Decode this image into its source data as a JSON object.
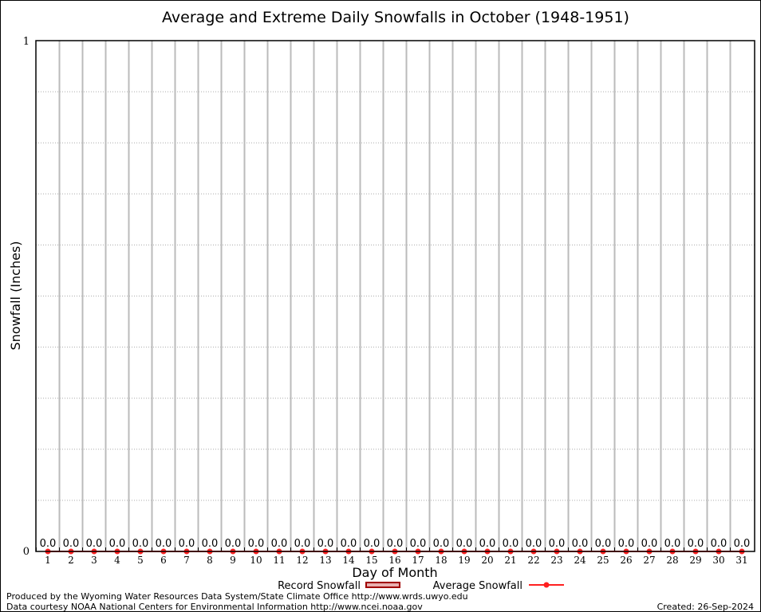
{
  "chart_data": {
    "type": "bar",
    "title": "Average and Extreme Daily Snowfalls in October (1948-1951)",
    "xlabel": "Day of Month",
    "ylabel": "Snowfall (Inches)",
    "categories": [
      1,
      2,
      3,
      4,
      5,
      6,
      7,
      8,
      9,
      10,
      11,
      12,
      13,
      14,
      15,
      16,
      17,
      18,
      19,
      20,
      21,
      22,
      23,
      24,
      25,
      26,
      27,
      28,
      29,
      30,
      31
    ],
    "ylim": [
      0,
      1
    ],
    "yticks": [
      "0",
      "1"
    ],
    "grid": true,
    "legend_position": "bottom",
    "series": [
      {
        "name": "Record Snowfall",
        "type": "bar",
        "color": "#a00000",
        "values": [
          0,
          0,
          0,
          0,
          0,
          0,
          0,
          0,
          0,
          0,
          0,
          0,
          0,
          0,
          0,
          0,
          0,
          0,
          0,
          0,
          0,
          0,
          0,
          0,
          0,
          0,
          0,
          0,
          0,
          0,
          0
        ]
      },
      {
        "name": "Average Snowfall",
        "type": "line",
        "color": "#ff2020",
        "values": [
          0,
          0,
          0,
          0,
          0,
          0,
          0,
          0,
          0,
          0,
          0,
          0,
          0,
          0,
          0,
          0,
          0,
          0,
          0,
          0,
          0,
          0,
          0,
          0,
          0,
          0,
          0,
          0,
          0,
          0,
          0
        ]
      }
    ],
    "data_labels": [
      "0.0",
      "0.0",
      "0.0",
      "0.0",
      "0.0",
      "0.0",
      "0.0",
      "0.0",
      "0.0",
      "0.0",
      "0.0",
      "0.0",
      "0.0",
      "0.0",
      "0.0",
      "0.0",
      "0.0",
      "0.0",
      "0.0",
      "0.0",
      "0.0",
      "0.0",
      "0.0",
      "0.0",
      "0.0",
      "0.0",
      "0.0",
      "0.0",
      "0.0",
      "0.0",
      "0.0"
    ]
  },
  "footer": {
    "produced_by": "Produced by the Wyoming Water Resources Data System/State Climate Office http://www.wrds.uwyo.edu",
    "courtesy": "Data courtesy NOAA National Centers for Environmental Information http://www.ncei.noaa.gov",
    "created": "Created: 26-Sep-2024"
  }
}
